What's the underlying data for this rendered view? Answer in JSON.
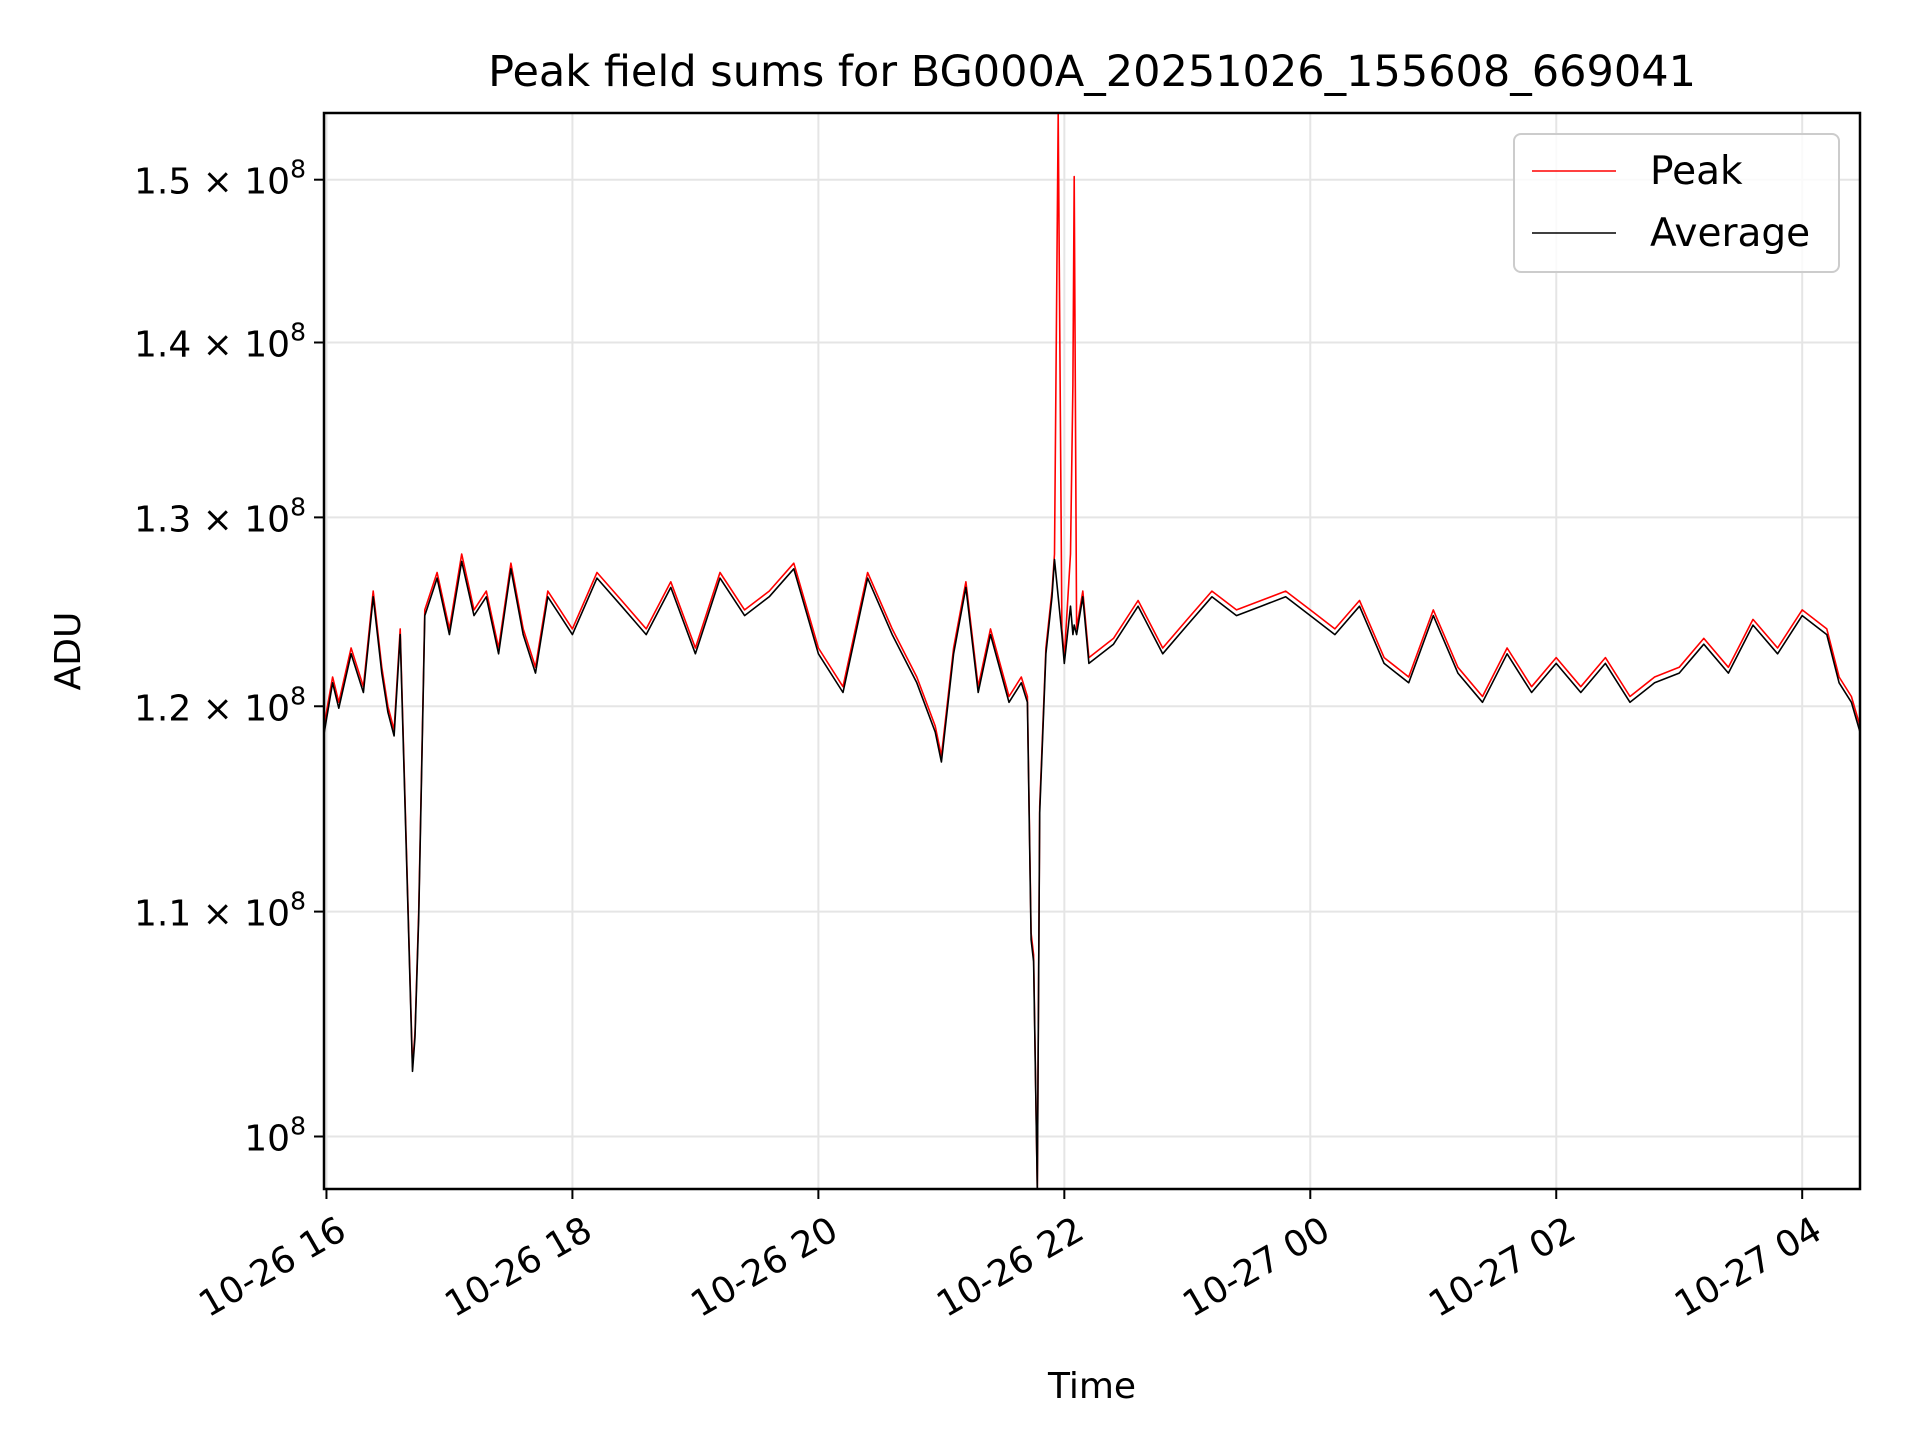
{
  "chart_data": {
    "type": "line",
    "title": "Peak field sums for BG000A_20251026_155608_669041",
    "xlabel": "Time",
    "ylabel": "ADU",
    "yscale": "log",
    "xlim_hours": [
      15.98,
      28.47
    ],
    "ylim": [
      97800000,
      154300000
    ],
    "grid": true,
    "legend_position": "top-right",
    "x_ticks": [
      {
        "hour": 16,
        "label": "10-26 16"
      },
      {
        "hour": 18,
        "label": "10-26 18"
      },
      {
        "hour": 20,
        "label": "10-26 20"
      },
      {
        "hour": 22,
        "label": "10-26 22"
      },
      {
        "hour": 24,
        "label": "10-27 00"
      },
      {
        "hour": 26,
        "label": "10-27 02"
      },
      {
        "hour": 28,
        "label": "10-27 04"
      }
    ],
    "y_ticks": [
      {
        "value": 100000000,
        "mantissa": "10",
        "exponent": "8"
      },
      {
        "value": 110000000,
        "mantissa": "1.1 × 10",
        "exponent": "8"
      },
      {
        "value": 120000000,
        "mantissa": "1.2 × 10",
        "exponent": "8"
      },
      {
        "value": 130000000,
        "mantissa": "1.3 × 10",
        "exponent": "8"
      },
      {
        "value": 140000000,
        "mantissa": "1.4 × 10",
        "exponent": "8"
      },
      {
        "value": 150000000,
        "mantissa": "1.5 × 10",
        "exponent": "8"
      }
    ],
    "series": [
      {
        "name": "Peak",
        "color": "#ff0000",
        "x_hours": [
          15.98,
          16.05,
          16.1,
          16.2,
          16.3,
          16.38,
          16.45,
          16.5,
          16.55,
          16.6,
          16.65,
          16.7,
          16.72,
          16.75,
          16.8,
          16.9,
          17.0,
          17.1,
          17.2,
          17.3,
          17.4,
          17.5,
          17.6,
          17.7,
          17.8,
          17.9,
          18.0,
          18.2,
          18.4,
          18.6,
          18.8,
          19.0,
          19.2,
          19.4,
          19.6,
          19.8,
          20.0,
          20.2,
          20.4,
          20.6,
          20.8,
          20.95,
          21.0,
          21.1,
          21.2,
          21.3,
          21.4,
          21.55,
          21.65,
          21.7,
          21.73,
          21.75,
          21.78,
          21.8,
          21.85,
          21.9,
          21.92,
          21.95,
          21.98,
          22.0,
          22.05,
          22.07,
          22.08,
          22.1,
          22.15,
          22.2,
          22.4,
          22.6,
          22.8,
          23.0,
          23.2,
          23.4,
          23.6,
          23.8,
          24.0,
          24.2,
          24.4,
          24.6,
          24.8,
          25.0,
          25.2,
          25.4,
          25.6,
          25.8,
          26.0,
          26.2,
          26.4,
          26.6,
          26.8,
          27.0,
          27.2,
          27.4,
          27.6,
          27.8,
          28.0,
          28.2,
          28.3,
          28.4,
          28.47
        ],
        "values": [
          119000000,
          121500000,
          120200000,
          123000000,
          121000000,
          126000000,
          122000000,
          120000000,
          118800000,
          124000000,
          113000000,
          103000000,
          104500000,
          110000000,
          125000000,
          127000000,
          124000000,
          128000000,
          125000000,
          126000000,
          123000000,
          127500000,
          124000000,
          122000000,
          126000000,
          125000000,
          124000000,
          127000000,
          125500000,
          124000000,
          126500000,
          123000000,
          127000000,
          125000000,
          126000000,
          127500000,
          123000000,
          121000000,
          127000000,
          124000000,
          121500000,
          119000000,
          117500000,
          123000000,
          126500000,
          121000000,
          124000000,
          120500000,
          121500000,
          120500000,
          109000000,
          108000000,
          97800000,
          115000000,
          123000000,
          126000000,
          128000000,
          154300000,
          124000000,
          122500000,
          128000000,
          137500000,
          150200000,
          124000000,
          126000000,
          122500000,
          123500000,
          125500000,
          123000000,
          124500000,
          126000000,
          125000000,
          125500000,
          126000000,
          125000000,
          124000000,
          125500000,
          122500000,
          121500000,
          125000000,
          122000000,
          120500000,
          123000000,
          121000000,
          122500000,
          121000000,
          122500000,
          120500000,
          121500000,
          122000000,
          123500000,
          122000000,
          124500000,
          123000000,
          125000000,
          124000000,
          121500000,
          120500000,
          119000000
        ]
      },
      {
        "name": "Average",
        "color": "#000000",
        "x_hours": [
          15.98,
          16.05,
          16.1,
          16.2,
          16.3,
          16.38,
          16.45,
          16.5,
          16.55,
          16.6,
          16.65,
          16.7,
          16.72,
          16.75,
          16.8,
          16.9,
          17.0,
          17.1,
          17.2,
          17.3,
          17.4,
          17.5,
          17.6,
          17.7,
          17.8,
          17.9,
          18.0,
          18.2,
          18.4,
          18.6,
          18.8,
          19.0,
          19.2,
          19.4,
          19.6,
          19.8,
          20.0,
          20.2,
          20.4,
          20.6,
          20.8,
          20.95,
          21.0,
          21.1,
          21.2,
          21.3,
          21.4,
          21.55,
          21.65,
          21.7,
          21.73,
          21.75,
          21.78,
          21.8,
          21.85,
          21.9,
          21.92,
          21.95,
          21.98,
          22.0,
          22.05,
          22.07,
          22.08,
          22.1,
          22.15,
          22.2,
          22.4,
          22.6,
          22.8,
          23.0,
          23.2,
          23.4,
          23.6,
          23.8,
          24.0,
          24.2,
          24.4,
          24.6,
          24.8,
          25.0,
          25.2,
          25.4,
          25.6,
          25.8,
          26.0,
          26.2,
          26.4,
          26.6,
          26.8,
          27.0,
          27.2,
          27.4,
          27.6,
          27.8,
          28.0,
          28.2,
          28.3,
          28.4,
          28.47
        ],
        "values": [
          118600000,
          121200000,
          119900000,
          122700000,
          120700000,
          125700000,
          121700000,
          119700000,
          118500000,
          123700000,
          112700000,
          102800000,
          104300000,
          109700000,
          124700000,
          126700000,
          123700000,
          127600000,
          124700000,
          125700000,
          122700000,
          127200000,
          123700000,
          121700000,
          125700000,
          124700000,
          123700000,
          126700000,
          125200000,
          123700000,
          126200000,
          122700000,
          126700000,
          124700000,
          125700000,
          127200000,
          122700000,
          120700000,
          126700000,
          123700000,
          121200000,
          118700000,
          117200000,
          122700000,
          126200000,
          120700000,
          123700000,
          120200000,
          121200000,
          120200000,
          108700000,
          107700000,
          97800000,
          114700000,
          122700000,
          125700000,
          127700000,
          125700000,
          123700000,
          122200000,
          125200000,
          123700000,
          124200000,
          123700000,
          125700000,
          122200000,
          123200000,
          125200000,
          122700000,
          124200000,
          125700000,
          124700000,
          125200000,
          125700000,
          124700000,
          123700000,
          125200000,
          122200000,
          121200000,
          124700000,
          121700000,
          120200000,
          122700000,
          120700000,
          122200000,
          120700000,
          122200000,
          120200000,
          121200000,
          121700000,
          123200000,
          121700000,
          124200000,
          122700000,
          124700000,
          123700000,
          121200000,
          120200000,
          118700000
        ]
      }
    ]
  }
}
